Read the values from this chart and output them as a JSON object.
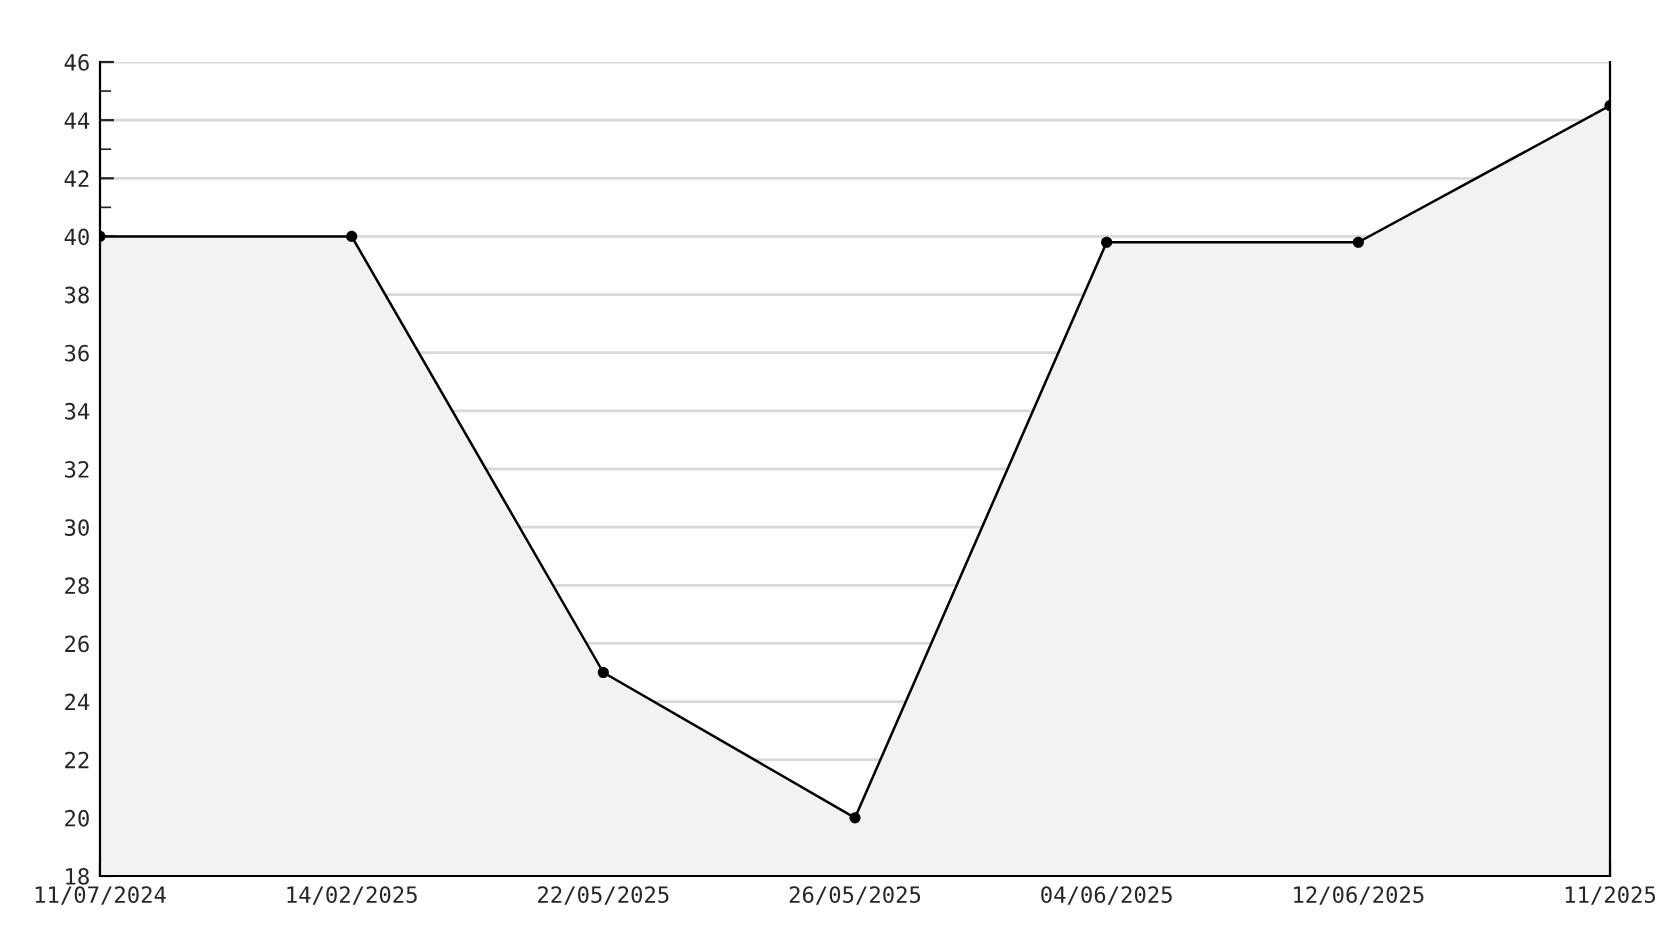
{
  "chart_data": {
    "type": "area",
    "categories": [
      "11/07/2024",
      "14/02/2025",
      "22/05/2025",
      "26/05/2025",
      "04/06/2025",
      "12/06/2025",
      "11/2025"
    ],
    "series": [
      {
        "color": "#000000",
        "values": [
          40,
          40,
          25,
          20,
          39.8,
          39.8,
          44.5
        ]
      }
    ],
    "ylim": [
      18,
      46
    ],
    "yticks": [
      18,
      20,
      22,
      24,
      26,
      28,
      30,
      32,
      34,
      36,
      38,
      40,
      42,
      44,
      46
    ],
    "grid": "y",
    "marker": "circle",
    "line_style": "solid",
    "legend": false
  }
}
